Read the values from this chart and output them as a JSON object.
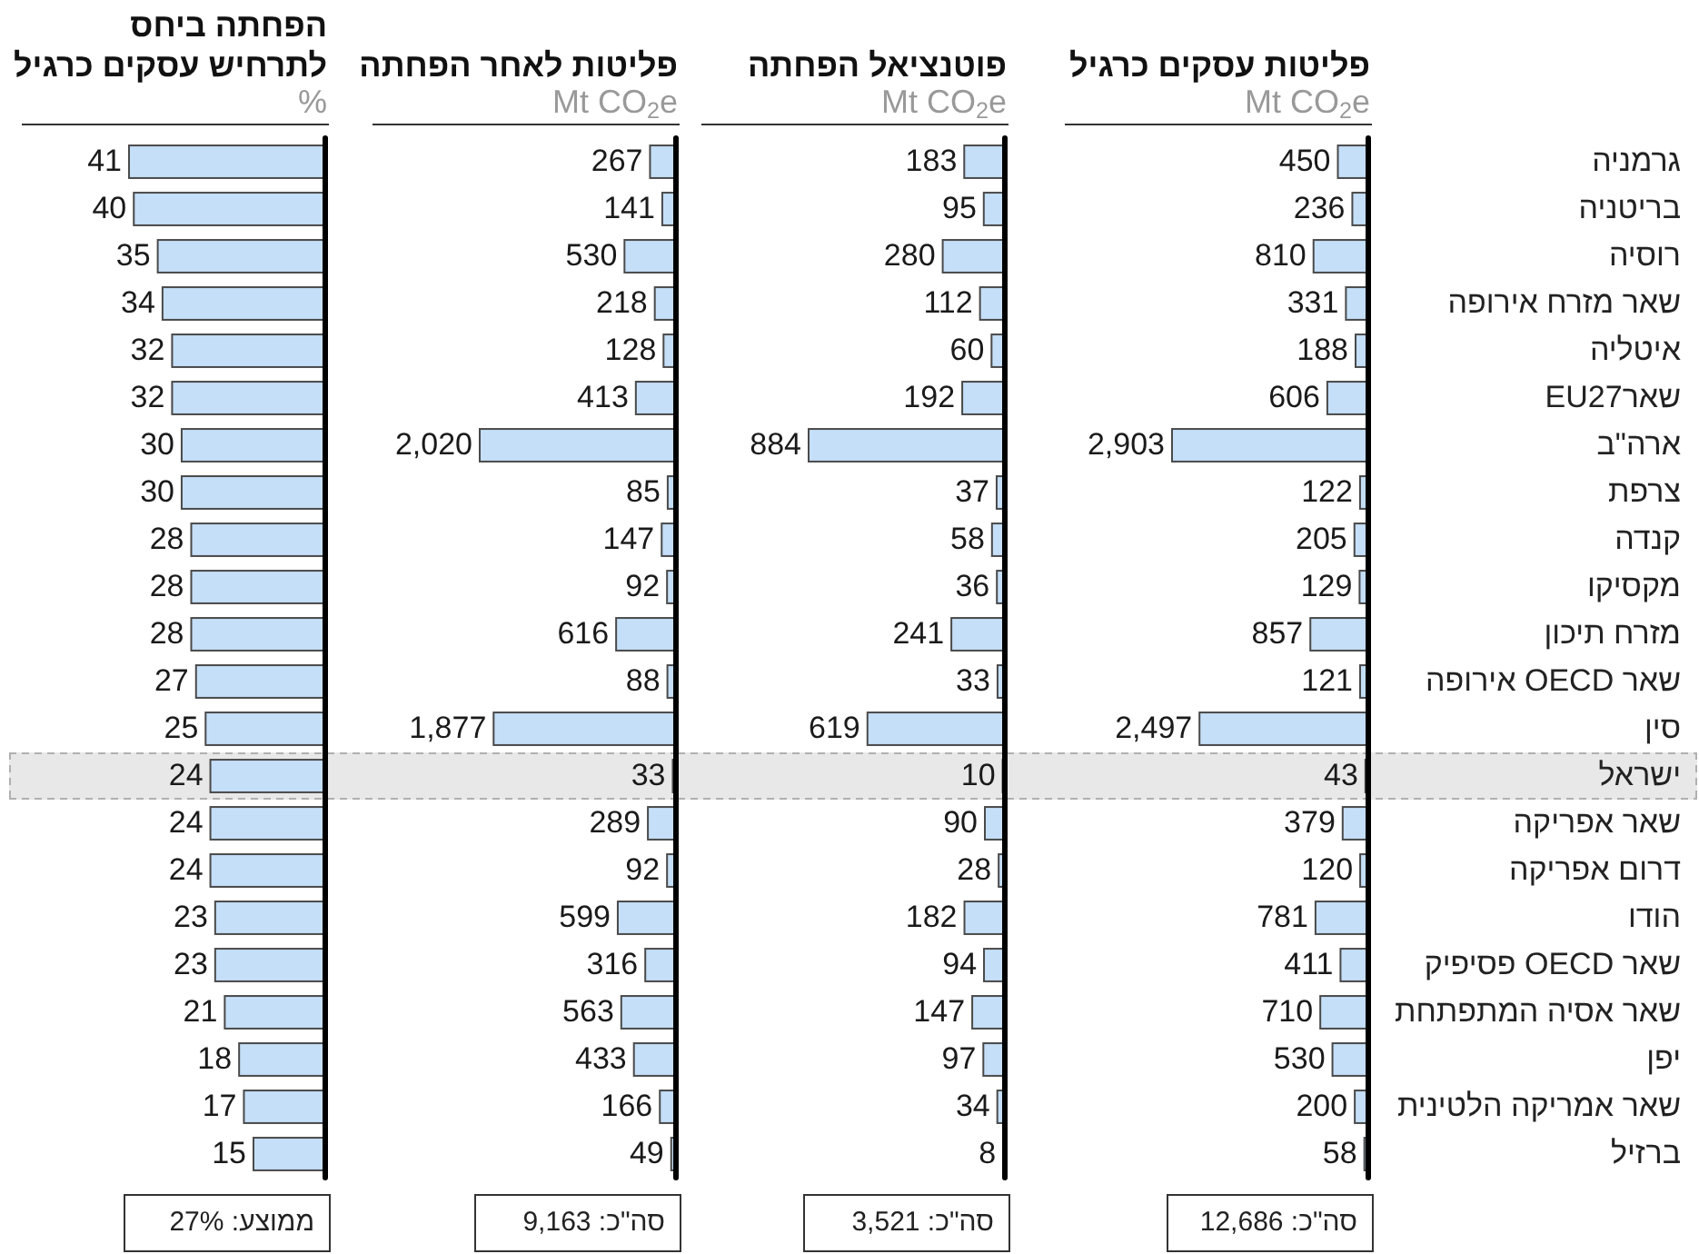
{
  "chart_data": [
    {
      "type": "bar",
      "orientation": "horizontal",
      "title": "פליטות עסקים כרגיל",
      "subtitle": "Mt CO$_{2}$e",
      "categories": [
        "גרמניה",
        "בריטניה",
        "רוסיה",
        "שאר מזרח אירופה",
        "איטליה",
        "שארEU27",
        "ארה\"ב",
        "צרפת",
        "קנדה",
        "מקסיקו",
        "מזרח תיכון",
        "שאר OECD אירופה",
        "סין",
        "ישראל",
        "שאר אפריקה",
        "דרום אפריקה",
        "הודו",
        "שאר OECD פסיפיק",
        "שאר אסיה המתפתחת",
        "יפן",
        "שאר אמריקה הלטינית",
        "ברזיל"
      ],
      "values": [
        450,
        236,
        810,
        331,
        188,
        606,
        2903,
        122,
        205,
        129,
        857,
        121,
        2497,
        43,
        379,
        120,
        781,
        411,
        710,
        530,
        200,
        58
      ],
      "value_labels": [
        "450",
        "236",
        "810",
        "331",
        "188",
        "606",
        "2,903",
        "122",
        "205",
        "129",
        "857",
        "121",
        "2,497",
        "43",
        "379",
        "120",
        "781",
        "411",
        "710",
        "530",
        "200",
        "58"
      ],
      "color": "#c5dff8",
      "tick_labels": "y",
      "bands": [
        {
          "axis": "y",
          "from": "ישראל",
          "to": "ישראל",
          "color": "#e8e8e8"
        }
      ],
      "annotations": [
        "סה\"כ: 12,686"
      ]
    },
    {
      "type": "bar",
      "orientation": "horizontal",
      "title": "פוטנציאל הפחתה",
      "subtitle": "Mt CO$_{2}$e",
      "categories": [
        "גרמניה",
        "בריטניה",
        "רוסיה",
        "שאר מזרח אירופה",
        "איטליה",
        "שארEU27",
        "ארה\"ב",
        "צרפת",
        "קנדה",
        "מקסיקו",
        "מזרח תיכון",
        "שאר OECD אירופה",
        "סין",
        "ישראל",
        "שאר אפריקה",
        "דרום אפריקה",
        "הודו",
        "שאר OECD פסיפיק",
        "שאר אסיה המתפתחת",
        "יפן",
        "שאר אמריקה הלטינית",
        "ברזיל"
      ],
      "values": [
        183,
        95,
        280,
        112,
        60,
        192,
        884,
        37,
        58,
        36,
        241,
        33,
        619,
        10,
        90,
        28,
        182,
        94,
        147,
        97,
        34,
        8
      ],
      "data_labels": true,
      "color": "#c5dff8",
      "tick_labels": false,
      "bands": [
        {
          "axis": "y",
          "from": "ישראל",
          "to": "ישראל",
          "color": "#e8e8e8"
        }
      ],
      "annotations": [
        "סה\"כ: 3,521"
      ]
    },
    {
      "type": "bar",
      "orientation": "horizontal",
      "title": "פליטות לאחר הפחתה",
      "subtitle": "Mt CO$_{2}$e",
      "categories": [
        "גרמניה",
        "בריטניה",
        "רוסיה",
        "שאר מזרח אירופה",
        "איטליה",
        "שארEU27",
        "ארה\"ב",
        "צרפת",
        "קנדה",
        "מקסיקו",
        "מזרח תיכון",
        "שאר OECD אירופה",
        "סין",
        "ישראל",
        "שאר אפריקה",
        "דרום אפריקה",
        "הודו",
        "שאר OECD פסיפיק",
        "שאר אסיה המתפתחת",
        "יפן",
        "שאר אמריקה הלטינית",
        "ברזיל"
      ],
      "values": [
        267,
        141,
        530,
        218,
        128,
        413,
        2020,
        85,
        147,
        92,
        616,
        88,
        1877,
        33,
        289,
        92,
        599,
        316,
        563,
        433,
        166,
        49
      ],
      "value_labels": [
        "267",
        "141",
        "530",
        "218",
        "128",
        "413",
        "2,020",
        "85",
        "147",
        "92",
        "616",
        "88",
        "1,877",
        "33",
        "289",
        "92",
        "599",
        "316",
        "563",
        "433",
        "166",
        "49"
      ],
      "color": "#c5dff8",
      "tick_labels": false,
      "bands": [
        {
          "axis": "y",
          "from": "ישראל",
          "to": "ישראל",
          "color": "#e8e8e8"
        }
      ],
      "annotations": [
        "סה\"כ: 9,163"
      ]
    },
    {
      "type": "bar",
      "orientation": "horizontal",
      "title": "הפחתה ביחס\nלתרחיש עסקים כרגיל",
      "subtitle": "%",
      "categories": [
        "גרמניה",
        "בריטניה",
        "רוסיה",
        "שאר מזרח אירופה",
        "איטליה",
        "שארEU27",
        "ארה\"ב",
        "צרפת",
        "קנדה",
        "מקסיקו",
        "מזרח תיכון",
        "שאר OECD אירופה",
        "סין",
        "ישראל",
        "שאר אפריקה",
        "דרום אפריקה",
        "הודו",
        "שאר OECD פסיפיק",
        "שאר אסיה המתפתחת",
        "יפן",
        "שאר אמריקה הלטינית",
        "ברזיל"
      ],
      "values": [
        41,
        40,
        35,
        34,
        32,
        32,
        30,
        30,
        28,
        28,
        28,
        27,
        25,
        24,
        24,
        24,
        23,
        23,
        21,
        18,
        17,
        15
      ],
      "data_labels": true,
      "color": "#c5dff8",
      "tick_labels": false,
      "bands": [
        {
          "axis": "y",
          "from": "ישראל",
          "to": "ישראל",
          "color": "#e8e8e8"
        }
      ],
      "annotations": [
        "ממוצע: 27%"
      ]
    }
  ]
}
